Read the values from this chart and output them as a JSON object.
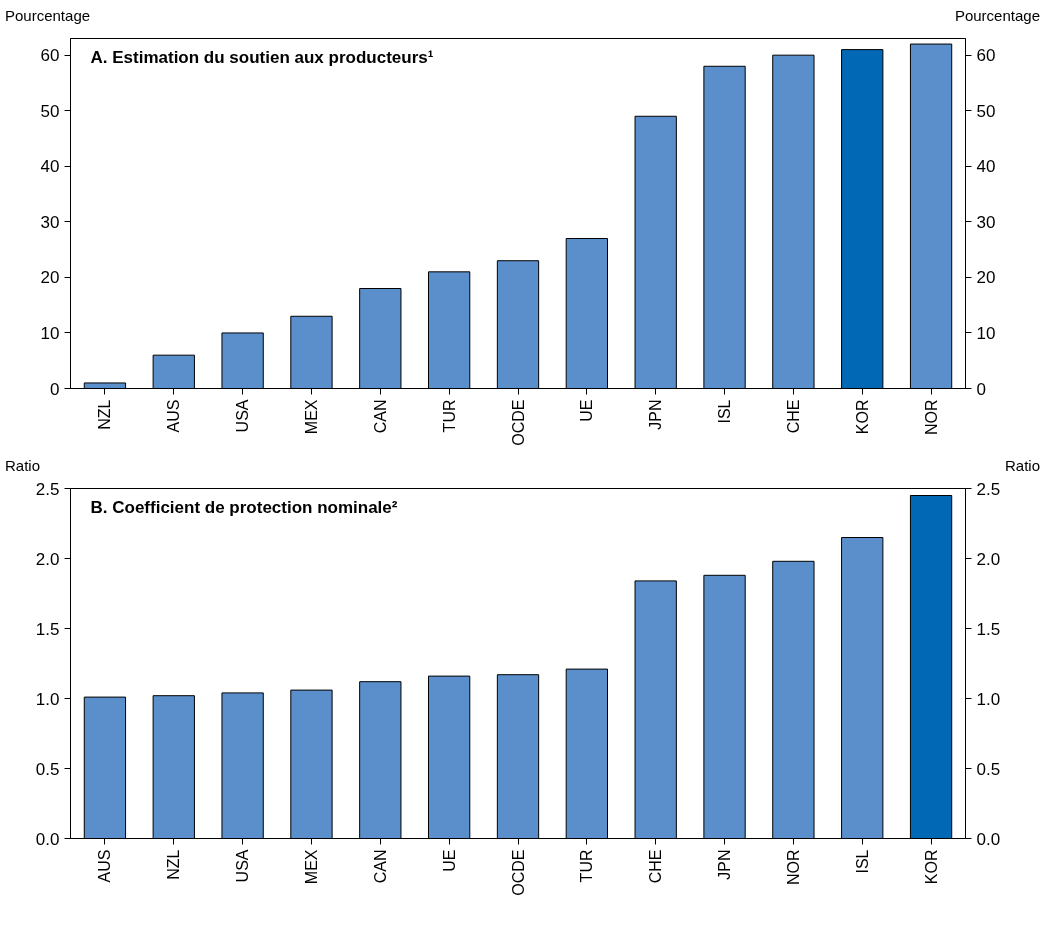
{
  "chart_data": [
    {
      "type": "bar",
      "title": "A. Estimation du soutien aux producteurs¹",
      "ylabel": "Pourcentage",
      "y2label": "Pourcentage",
      "categories": [
        "NZL",
        "AUS",
        "USA",
        "MEX",
        "CAN",
        "TUR",
        "OCDE",
        "UE",
        "JPN",
        "ISL",
        "CHE",
        "KOR",
        "NOR"
      ],
      "values": [
        1,
        6,
        10,
        13,
        18,
        21,
        23,
        27,
        49,
        58,
        60,
        61,
        62
      ],
      "colors": [
        "#5b8fcb",
        "#5b8fcb",
        "#5b8fcb",
        "#5b8fcb",
        "#5b8fcb",
        "#5b8fcb",
        "#5b8fcb",
        "#5b8fcb",
        "#5b8fcb",
        "#5b8fcb",
        "#5b8fcb",
        "#0068b4",
        "#5b8fcb"
      ],
      "ylim": [
        0,
        63
      ],
      "yticks": [
        0,
        10,
        20,
        30,
        40,
        50,
        60
      ],
      "y2lim": [
        0,
        63
      ],
      "y2ticks": [
        0,
        10,
        20,
        30,
        40,
        50,
        60
      ],
      "grid": false
    },
    {
      "type": "bar",
      "title": "B. Coefficient de protection nominale²",
      "ylabel": "Ratio",
      "y2label": "Ratio",
      "categories": [
        "AUS",
        "NZL",
        "USA",
        "MEX",
        "CAN",
        "UE",
        "OCDE",
        "TUR",
        "CHE",
        "JPN",
        "NOR",
        "ISL",
        "KOR"
      ],
      "values": [
        1.01,
        1.02,
        1.04,
        1.06,
        1.12,
        1.16,
        1.17,
        1.21,
        1.84,
        1.88,
        1.98,
        2.15,
        2.45
      ],
      "colors": [
        "#5b8fcb",
        "#5b8fcb",
        "#5b8fcb",
        "#5b8fcb",
        "#5b8fcb",
        "#5b8fcb",
        "#5b8fcb",
        "#5b8fcb",
        "#5b8fcb",
        "#5b8fcb",
        "#5b8fcb",
        "#5b8fcb",
        "#0068b4"
      ],
      "ylim": [
        0,
        2.5
      ],
      "yticks": [
        {
          "value": 0,
          "label": "0.0"
        },
        0.5,
        {
          "value": 1,
          "label": "1.0"
        },
        1.5,
        {
          "value": 2,
          "label": "2.0"
        },
        2.5
      ],
      "y2lim": [
        0,
        2.5
      ],
      "y2ticks": [
        {
          "value": 0,
          "label": "0.0"
        },
        0.5,
        {
          "value": 1,
          "label": "1.0"
        },
        1.5,
        {
          "value": 2,
          "label": "2.0"
        },
        2.5
      ],
      "grid": false
    }
  ]
}
